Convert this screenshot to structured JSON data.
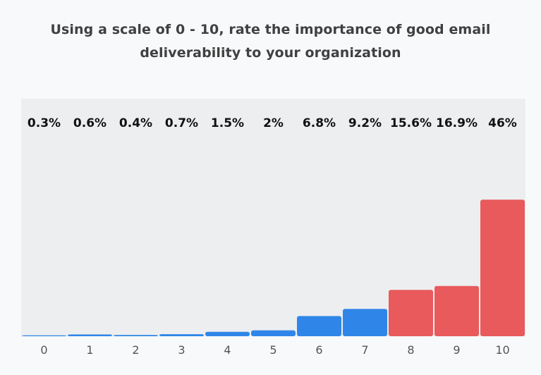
{
  "chart_data": {
    "type": "bar",
    "title_lines": [
      "Using a scale of 0 - 10, rate the importance of good email",
      "deliverability to your organization"
    ],
    "categories": [
      "0",
      "1",
      "2",
      "3",
      "4",
      "5",
      "6",
      "7",
      "8",
      "9",
      "10"
    ],
    "values": [
      0.3,
      0.6,
      0.4,
      0.7,
      1.5,
      2,
      6.8,
      9.2,
      15.6,
      16.9,
      46
    ],
    "value_labels": [
      "0.3%",
      "0.6%",
      "0.4%",
      "0.7%",
      "1.5%",
      "2%",
      "6.8%",
      "9.2%",
      "15.6%",
      "16.9%",
      "46%"
    ],
    "ylim": [
      0,
      80
    ],
    "grid": false,
    "colors": {
      "low": "#2f86e8",
      "high": "#e85a5b",
      "plot_background": "#edeef0",
      "page_background": "#f7f9fb"
    }
  }
}
